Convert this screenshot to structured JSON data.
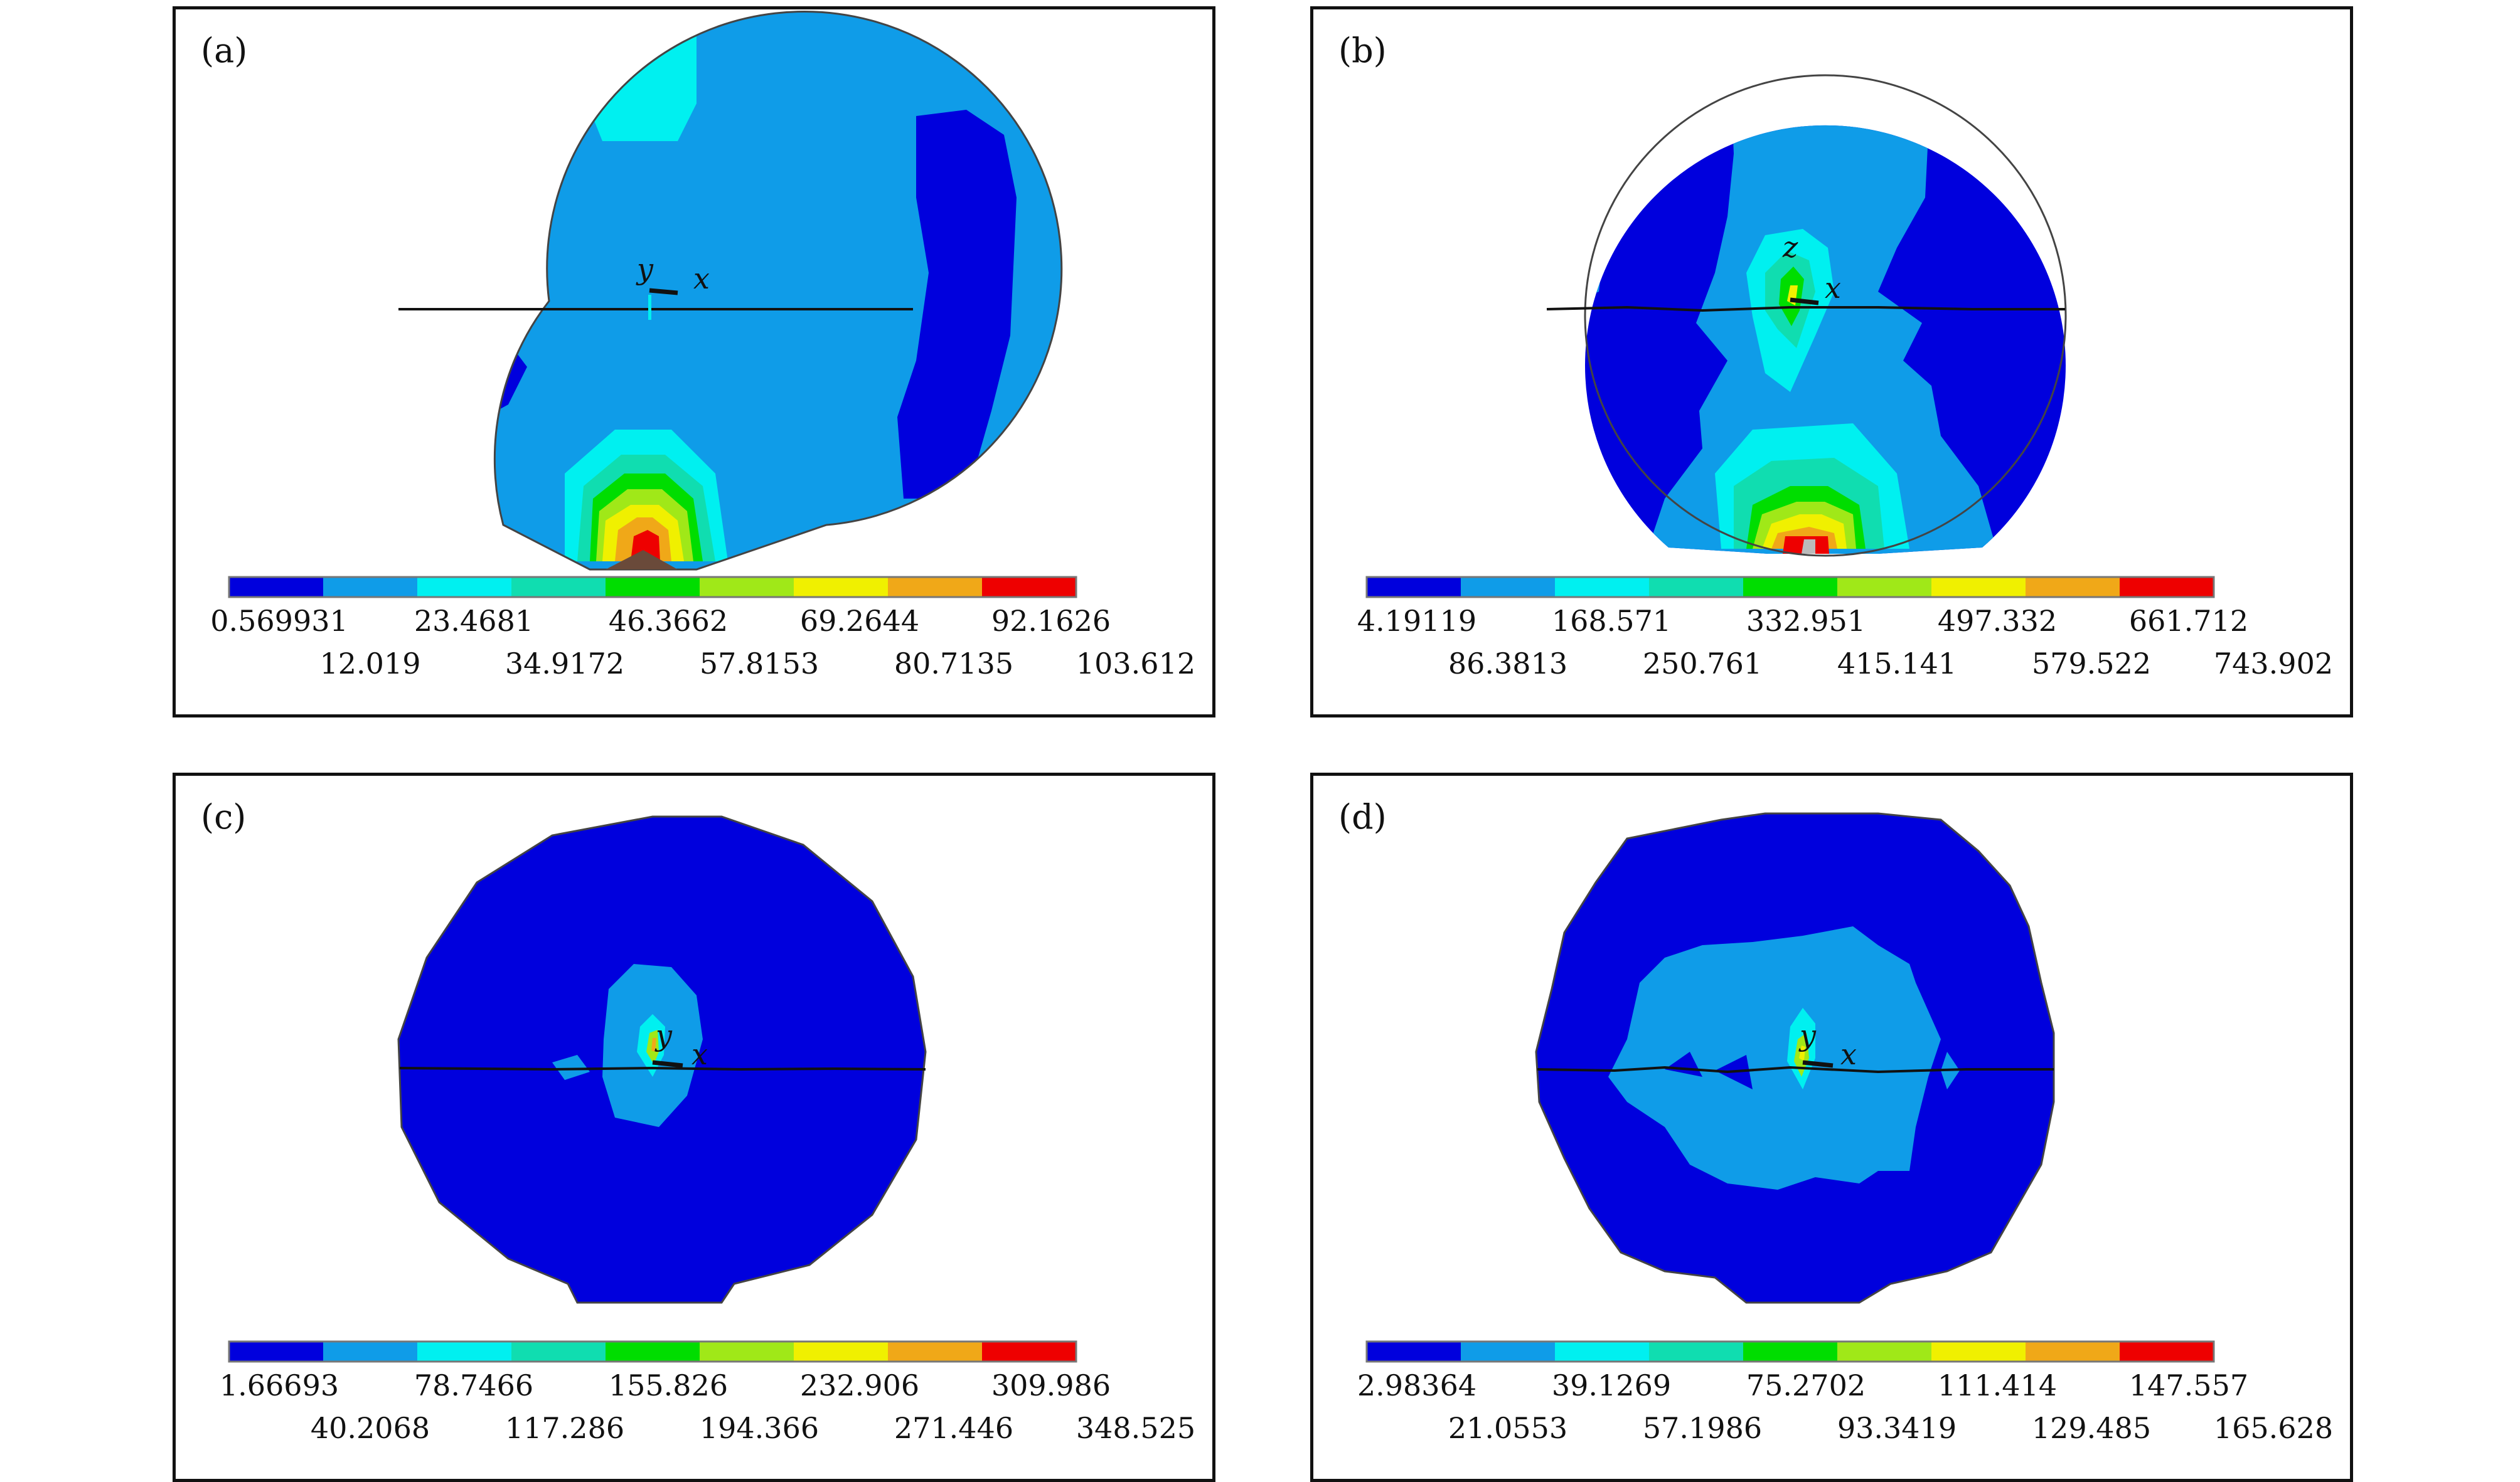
{
  "palette": [
    "#0000dd",
    "#0f9ce8",
    "#00f0f0",
    "#10ddb0",
    "#00dd00",
    "#a0e818",
    "#f0f000",
    "#f0a818",
    "#ee0000"
  ],
  "panels": [
    {
      "label": "(a)",
      "axes": [
        "y",
        "x"
      ],
      "scale_top": [
        "0.569931",
        "23.4681",
        "46.3662",
        "69.2644",
        "92.1626"
      ],
      "scale_bottom": [
        "12.019",
        "34.9172",
        "57.8153",
        "80.7135",
        "103.612"
      ]
    },
    {
      "label": "(b)",
      "axes": [
        "z",
        "x"
      ],
      "scale_top": [
        "4.19119",
        "168.571",
        "332.951",
        "497.332",
        "661.712"
      ],
      "scale_bottom": [
        "86.3813",
        "250.761",
        "415.141",
        "579.522",
        "743.902"
      ]
    },
    {
      "label": "(c)",
      "axes": [
        "y",
        "x"
      ],
      "scale_top": [
        "1.66693",
        "78.7466",
        "155.826",
        "232.906",
        "309.986"
      ],
      "scale_bottom": [
        "40.2068",
        "117.286",
        "194.366",
        "271.446",
        "348.525"
      ]
    },
    {
      "label": "(d)",
      "axes": [
        "y",
        "x"
      ],
      "scale_top": [
        "2.98364",
        "39.1269",
        "75.2702",
        "111.414",
        "147.557"
      ],
      "scale_bottom": [
        "21.0553",
        "57.1986",
        "93.3419",
        "129.485",
        "165.628"
      ]
    }
  ]
}
